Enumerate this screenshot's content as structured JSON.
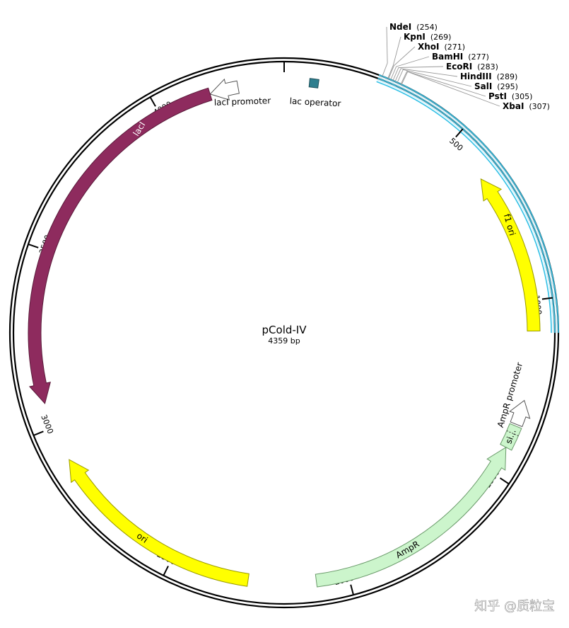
{
  "plasmid": {
    "name": "pCold-IV",
    "size_label": "4359 bp",
    "length": 4359
  },
  "ticks": [
    {
      "value": 500,
      "label": "500"
    },
    {
      "value": 1000,
      "label": "1000"
    },
    {
      "value": 1500,
      "label": "1500"
    },
    {
      "value": 2000,
      "label": "2000"
    },
    {
      "value": 2500,
      "label": "2500"
    },
    {
      "value": 3000,
      "label": "3000"
    },
    {
      "value": 3500,
      "label": "3500"
    },
    {
      "value": 4000,
      "label": "4000"
    }
  ],
  "sites": [
    {
      "name": "NdeI",
      "pos": 254,
      "pos_label": "(254)"
    },
    {
      "name": "KpnI",
      "pos": 269,
      "pos_label": "(269)"
    },
    {
      "name": "XhoI",
      "pos": 271,
      "pos_label": "(271)"
    },
    {
      "name": "BamHI",
      "pos": 277,
      "pos_label": "(277)"
    },
    {
      "name": "EcoRI",
      "pos": 283,
      "pos_label": "(283)"
    },
    {
      "name": "HindIII",
      "pos": 289,
      "pos_label": "(289)"
    },
    {
      "name": "SalI",
      "pos": 295,
      "pos_label": "(295)"
    },
    {
      "name": "PstI",
      "pos": 305,
      "pos_label": "(305)"
    },
    {
      "name": "XbaI",
      "pos": 307,
      "pos_label": "(307)"
    }
  ],
  "highlight_region": {
    "start": 245,
    "end": 1090,
    "color": "#31c0e6"
  },
  "features": [
    {
      "id": "laci-promoter",
      "label": "lacI promoter",
      "start": 4150,
      "end": 4230,
      "strand": -1,
      "color": "#ffffff",
      "stroke": "#555555"
    },
    {
      "id": "laci",
      "label": "lacI",
      "start": 3070,
      "end": 4150,
      "strand": -1,
      "color": "#8e2b5e",
      "stroke": "#5a1a3a"
    },
    {
      "id": "lac-operator",
      "label": "lac operator",
      "start": 70,
      "end": 95,
      "strand": 0,
      "color": "#2f7f8f",
      "stroke": "#1d4f59"
    },
    {
      "id": "f1-ori",
      "label": "f1 ori",
      "start": 630,
      "end": 1085,
      "strand": -1,
      "color": "#ffff00",
      "stroke": "#999900"
    },
    {
      "id": "ampr-promoter",
      "label": "AmpR promoter",
      "start": 1280,
      "end": 1350,
      "strand": -1,
      "color": "#ffffff",
      "stroke": "#555555"
    },
    {
      "id": "ampr-signal",
      "label": "si...",
      "start": 1355,
      "end": 1420,
      "strand": 0,
      "color": "#ccf5cc",
      "stroke": "#6a9a6a"
    },
    {
      "id": "ampr",
      "label": "AmpR",
      "start": 1420,
      "end": 2090,
      "strand": -1,
      "color": "#ccf5cc",
      "stroke": "#6a9a6a"
    },
    {
      "id": "ori",
      "label": "ori",
      "start": 2280,
      "end": 2900,
      "strand": 1,
      "color": "#ffff00",
      "stroke": "#999900"
    }
  ],
  "watermark": "知乎 @质粒宝"
}
